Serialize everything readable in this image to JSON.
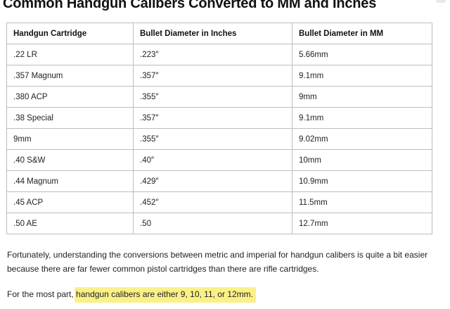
{
  "page": {
    "title": "Common Handgun Calibers Converted to MM and Inches"
  },
  "table": {
    "headers": [
      "Handgun Cartridge",
      "Bullet Diameter in Inches",
      "Bullet Diameter in MM"
    ],
    "rows": [
      [
        ".22 LR",
        ".223″",
        "5.66mm"
      ],
      [
        ".357 Magnum",
        ".357″",
        "9.1mm"
      ],
      [
        ".380 ACP",
        ".355″",
        "9mm"
      ],
      [
        ".38 Special",
        ".357″",
        "9.1mm"
      ],
      [
        "9mm",
        ".355″",
        "9.02mm"
      ],
      [
        ".40 S&W",
        ".40″",
        "10mm"
      ],
      [
        ".44 Magnum",
        ".429″",
        "10.9mm"
      ],
      [
        ".45 ACP",
        ".452″",
        "11.5mm"
      ],
      [
        ".50 AE",
        ".50",
        "12.7mm"
      ]
    ]
  },
  "body": {
    "paragraph1_line1": "Fortunately, understanding the conversions between metric and imperial for handgun calibers is quite a bit easier",
    "paragraph1_line2": "because there are far fewer common pistol cartridges than there are rifle cartridges.",
    "paragraph2_prefix": "For the most part, ",
    "paragraph2_highlight": "handgun calibers are either 9, 10, 11, or 12mm.",
    "highlight_color": "#fbf088"
  }
}
